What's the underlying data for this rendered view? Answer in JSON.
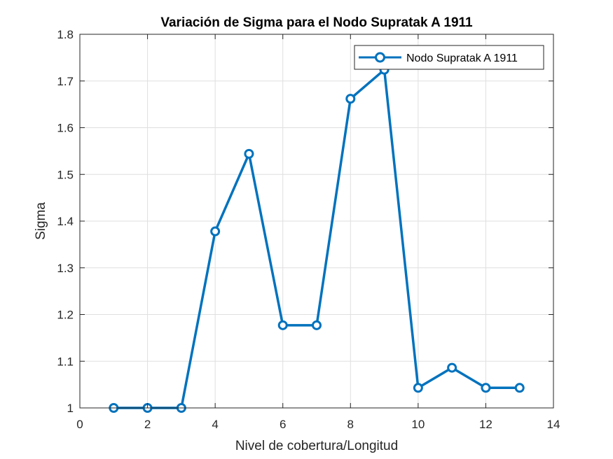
{
  "chart_data": {
    "type": "line",
    "title": "Variación de Sigma para el Nodo Supratak A 1911",
    "xlabel": "Nivel de cobertura/Longitud",
    "ylabel": "Sigma",
    "xlim": [
      0,
      14
    ],
    "ylim": [
      1,
      1.8
    ],
    "xticks": [
      0,
      2,
      4,
      6,
      8,
      10,
      12,
      14
    ],
    "yticks": [
      1,
      1.1,
      1.2,
      1.3,
      1.4,
      1.5,
      1.6,
      1.7,
      1.8
    ],
    "xtick_labels": [
      "0",
      "2",
      "4",
      "6",
      "8",
      "10",
      "12",
      "14"
    ],
    "ytick_labels": [
      "1",
      "1.1",
      "1.2",
      "1.3",
      "1.4",
      "1.5",
      "1.6",
      "1.7",
      "1.8"
    ],
    "grid": true,
    "legend_position": "top-right",
    "series": [
      {
        "name": "Nodo Supratak A 1911",
        "color": "#0072BD",
        "marker": "circle",
        "x": [
          1,
          2,
          3,
          4,
          5,
          6,
          7,
          8,
          9,
          10,
          11,
          12,
          13
        ],
        "y": [
          1.0,
          1.0,
          1.0,
          1.378,
          1.544,
          1.177,
          1.177,
          1.662,
          1.724,
          1.043,
          1.086,
          1.043,
          1.043
        ]
      }
    ]
  }
}
